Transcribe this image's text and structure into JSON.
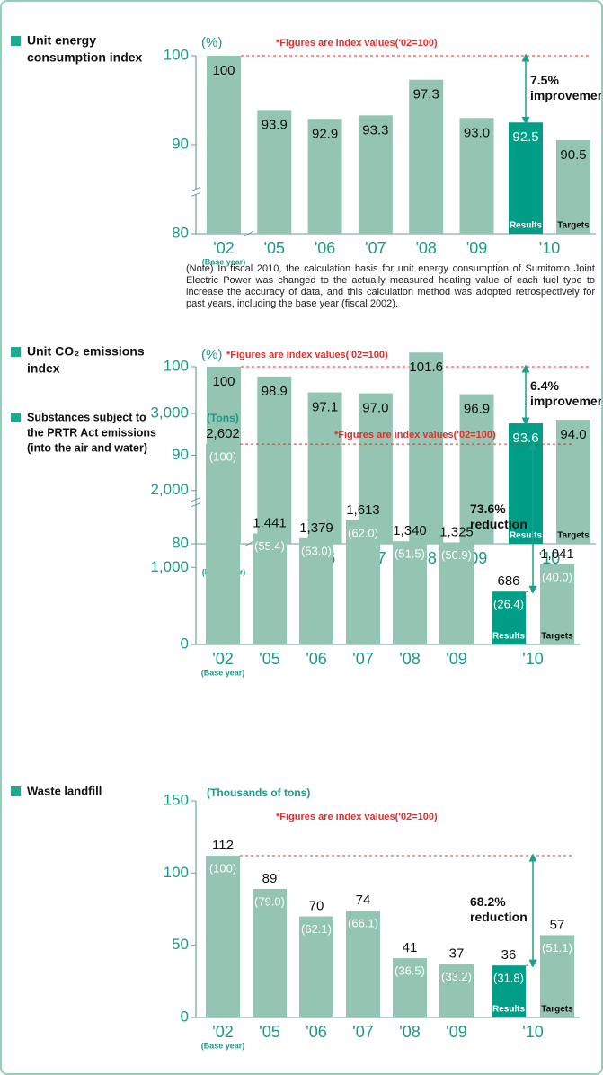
{
  "chart_data": [
    {
      "type": "bar",
      "title": [
        "Unit energy",
        "consumption index"
      ],
      "unit": "(%)",
      "note": "*Figures are index values('02=100)",
      "categories": [
        "'02",
        "'05",
        "'06",
        "'07",
        "'08",
        "'09",
        "'10"
      ],
      "values": [
        100,
        93.9,
        92.9,
        93.3,
        97.3,
        93.0,
        92.5
      ],
      "value_labels": [
        "100",
        "93.9",
        "92.9",
        "93.3",
        "97.3",
        "93.0",
        "92.5"
      ],
      "target": 90.5,
      "target_value_label": "90.5",
      "result_name": "Results",
      "target_name": "Targets",
      "base_year_label": "(Base year)",
      "annotation": [
        "7.5%",
        "improvement"
      ],
      "footnote": "(Note) In fiscal 2010, the calculation basis for unit energy consumption of Sumitomo Joint Electric Power was changed to the actually measured heating value of each fuel type to increase the accuracy of data, and this calculation method was adopted retrospectively for past years, including the base year (fiscal 2002).",
      "ylim": [
        80,
        100
      ],
      "yticks": [
        80,
        90,
        100
      ],
      "axis_break": true,
      "color": "#93c5b2",
      "highlight_color": "#009e87"
    },
    {
      "type": "bar",
      "title": [
        "Unit CO₂ emissions",
        "index"
      ],
      "unit": "(%)",
      "note": "*Figures are index values('02=100)",
      "categories": [
        "'02",
        "'05",
        "'06",
        "'07",
        "'08",
        "'09",
        "'10"
      ],
      "values": [
        100,
        98.9,
        97.1,
        97.0,
        101.6,
        96.9,
        93.6
      ],
      "value_labels": [
        "100",
        "98.9",
        "97.1",
        "97.0",
        "101.6",
        "96.9",
        "93.6"
      ],
      "target": 94.0,
      "target_value_label": "94.0",
      "result_name": "Results",
      "target_name": "Targets",
      "base_year_label": "(Base year)",
      "annotation": [
        "6.4%",
        "improvement"
      ],
      "ylim": [
        80,
        100
      ],
      "yticks": [
        80,
        90,
        100
      ],
      "axis_break": true,
      "color": "#93c5b2",
      "highlight_color": "#009e87"
    },
    {
      "type": "bar",
      "title": [
        "Substances subject to",
        "the PRTR Act emissions",
        "(into the air and water)"
      ],
      "unit": "(Tons)",
      "note": "*Figures are index values('02=100)",
      "categories": [
        "'02",
        "'05",
        "'06",
        "'07",
        "'08",
        "'09",
        "'10"
      ],
      "values": [
        2602,
        1441,
        1379,
        1613,
        1340,
        1325,
        686
      ],
      "value_labels": [
        "2,602",
        "1,441",
        "1,379",
        "1,613",
        "1,340",
        "1,325",
        "686"
      ],
      "index_labels": [
        "(100)",
        "(55.4)",
        "(53.0)",
        "(62.0)",
        "(51.5)",
        "(50.9)",
        "(26.4)"
      ],
      "target": 1041,
      "target_value_label": "1,041",
      "target_index_label": "(40.0)",
      "result_name": "Results",
      "target_name": "Targets",
      "base_year_label": "(Base year)",
      "annotation": [
        "73.6%",
        "reduction"
      ],
      "ylim": [
        0,
        3000
      ],
      "yticks": [
        0,
        {
          "value": 1000,
          "label": "1,000"
        },
        {
          "value": 2000,
          "label": "2,000"
        },
        {
          "value": 3000,
          "label": "3,000"
        }
      ],
      "color": "#93c5b2",
      "highlight_color": "#009e87"
    },
    {
      "type": "bar",
      "title": [
        "Waste landfill"
      ],
      "unit": "(Thousands of tons)",
      "note": "*Figures are index values('02=100)",
      "categories": [
        "'02",
        "'05",
        "'06",
        "'07",
        "'08",
        "'09",
        "'10"
      ],
      "values": [
        112,
        89,
        70,
        74,
        41,
        37,
        36
      ],
      "index_labels": [
        "(100)",
        "(79.0)",
        "(62.1)",
        "(66.1)",
        "(36.5)",
        "(33.2)",
        "(31.8)"
      ],
      "target": 57,
      "target_index_label": "(51.1)",
      "result_name": "Results",
      "target_name": "Targets",
      "base_year_label": "(Base year)",
      "annotation": [
        "68.2%",
        "reduction"
      ],
      "ylim": [
        0,
        150
      ],
      "yticks": [
        0,
        50,
        100,
        150
      ],
      "color": "#93c5b2",
      "highlight_color": "#009e87"
    }
  ]
}
